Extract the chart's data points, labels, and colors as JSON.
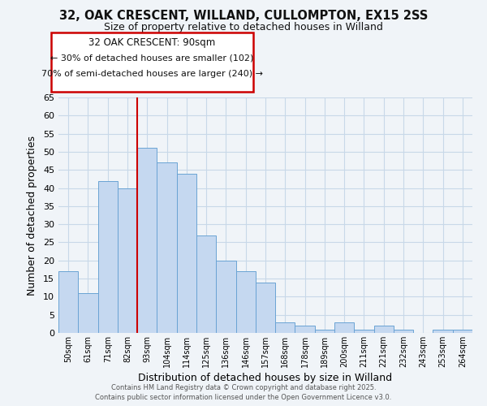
{
  "title": "32, OAK CRESCENT, WILLAND, CULLOMPTON, EX15 2SS",
  "subtitle": "Size of property relative to detached houses in Willand",
  "xlabel": "Distribution of detached houses by size in Willand",
  "ylabel": "Number of detached properties",
  "bar_labels": [
    "50sqm",
    "61sqm",
    "71sqm",
    "82sqm",
    "93sqm",
    "104sqm",
    "114sqm",
    "125sqm",
    "136sqm",
    "146sqm",
    "157sqm",
    "168sqm",
    "178sqm",
    "189sqm",
    "200sqm",
    "211sqm",
    "221sqm",
    "232sqm",
    "243sqm",
    "253sqm",
    "264sqm"
  ],
  "bar_values": [
    17,
    11,
    42,
    40,
    51,
    47,
    44,
    27,
    20,
    17,
    14,
    3,
    2,
    1,
    3,
    1,
    2,
    1,
    0,
    1,
    1
  ],
  "bar_color": "#c5d8f0",
  "bar_edge_color": "#6aa3d4",
  "ylim": [
    0,
    65
  ],
  "yticks": [
    0,
    5,
    10,
    15,
    20,
    25,
    30,
    35,
    40,
    45,
    50,
    55,
    60,
    65
  ],
  "vline_x_index": 4,
  "vline_color": "#cc0000",
  "annotation_title": "32 OAK CRESCENT: 90sqm",
  "annotation_line1": "← 30% of detached houses are smaller (102)",
  "annotation_line2": "70% of semi-detached houses are larger (240) →",
  "annotation_box_color": "#ffffff",
  "annotation_box_edge": "#cc0000",
  "footer1": "Contains HM Land Registry data © Crown copyright and database right 2025.",
  "footer2": "Contains public sector information licensed under the Open Government Licence v3.0.",
  "background_color": "#f0f4f8",
  "grid_color": "#c8d8e8"
}
